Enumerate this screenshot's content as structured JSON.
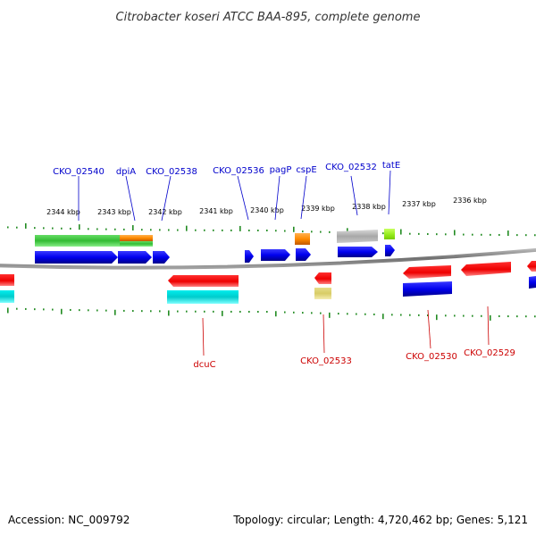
{
  "title": "Citrobacter koseri ATCC BAA-895, complete genome",
  "footer": {
    "accession": "Accession: NC_009792",
    "topology": "Topology: circular; Length: 4,720,462 bp; Genes: 5,121"
  },
  "colors": {
    "forward_label": "#0000cc",
    "reverse_label": "#cc0000",
    "backbone": "#808080",
    "ticks": "#228b22"
  },
  "kbp_ticks": [
    "2344 kbp",
    "2343 kbp",
    "2342 kbp",
    "2341 kbp",
    "2340 kbp",
    "2339 kbp",
    "2338 kbp",
    "2337 kbp",
    "2336 kbp"
  ],
  "forward_labels": [
    "CKO_02540",
    "dpiA",
    "CKO_02538",
    "CKO_02536",
    "pagP",
    "cspE",
    "CKO_02532",
    "tatE"
  ],
  "reverse_labels": [
    "dcuC",
    "CKO_02533",
    "CKO_02530",
    "CKO_02529"
  ]
}
